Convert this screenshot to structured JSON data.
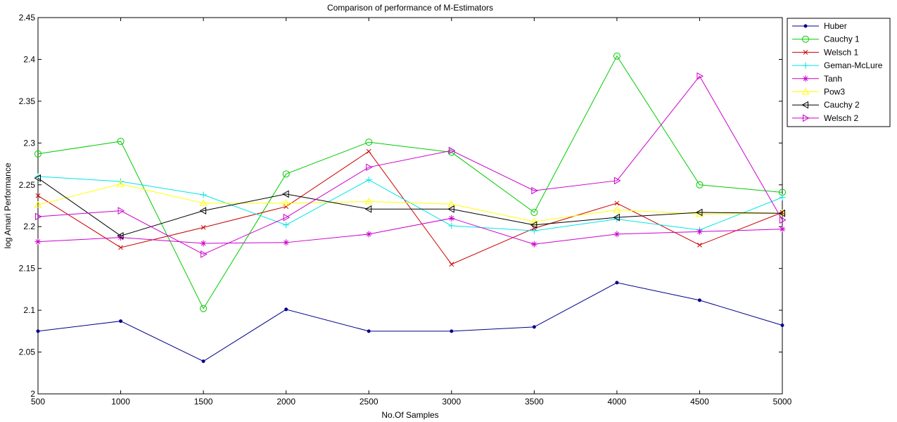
{
  "chart_data": {
    "type": "line",
    "title": "Comparison of performance of M-Estimators",
    "xlabel": "No.Of Samples",
    "ylabel": "log Amari Performance",
    "x": [
      500,
      1000,
      1500,
      2000,
      2500,
      3000,
      3500,
      4000,
      4500,
      5000
    ],
    "xlim": [
      500,
      5000
    ],
    "ylim": [
      2.0,
      2.45
    ],
    "xticks": [
      "500",
      "1000",
      "1500",
      "2000",
      "2500",
      "3000",
      "3500",
      "4000",
      "4500",
      "5000"
    ],
    "yticks": [
      "2",
      "2.05",
      "2.1",
      "2.15",
      "2.2",
      "2.25",
      "2.3",
      "2.35",
      "2.4",
      "2.45"
    ],
    "grid": false,
    "legend_position": "outside-top-right",
    "series": [
      {
        "name": "Huber",
        "color": "#00008b",
        "marker": "dot",
        "values": [
          2.075,
          2.087,
          2.039,
          2.101,
          2.075,
          2.075,
          2.08,
          2.133,
          2.112,
          2.082
        ]
      },
      {
        "name": "Cauchy 1",
        "color": "#00cc00",
        "marker": "circle",
        "values": [
          2.287,
          2.302,
          2.102,
          2.263,
          2.301,
          2.289,
          2.217,
          2.404,
          2.25,
          2.241
        ]
      },
      {
        "name": "Welsch 1",
        "color": "#cc0000",
        "marker": "x",
        "values": [
          2.237,
          2.175,
          2.199,
          2.224,
          2.29,
          2.155,
          2.198,
          2.228,
          2.178,
          2.217
        ]
      },
      {
        "name": "Geman-McLure",
        "color": "#00e5e5",
        "marker": "plus",
        "values": [
          2.26,
          2.254,
          2.238,
          2.202,
          2.256,
          2.201,
          2.195,
          2.209,
          2.196,
          2.235
        ]
      },
      {
        "name": "Tanh",
        "color": "#cc00cc",
        "marker": "star",
        "values": [
          2.182,
          2.187,
          2.18,
          2.181,
          2.191,
          2.21,
          2.179,
          2.191,
          2.194,
          2.197
        ]
      },
      {
        "name": "Pow3",
        "color": "#ffff00",
        "marker": "triangle-up",
        "values": [
          2.226,
          2.251,
          2.228,
          2.228,
          2.23,
          2.227,
          2.206,
          2.22,
          2.215,
          2.216
        ]
      },
      {
        "name": "Cauchy 2",
        "color": "#000000",
        "marker": "triangle-left",
        "values": [
          2.258,
          2.189,
          2.219,
          2.239,
          2.221,
          2.221,
          2.202,
          2.211,
          2.217,
          2.216
        ]
      },
      {
        "name": "Welsch 2",
        "color": "#cc00cc",
        "marker": "triangle-right",
        "values": [
          2.212,
          2.219,
          2.167,
          2.211,
          2.271,
          2.291,
          2.243,
          2.255,
          2.38,
          2.208
        ]
      }
    ]
  }
}
